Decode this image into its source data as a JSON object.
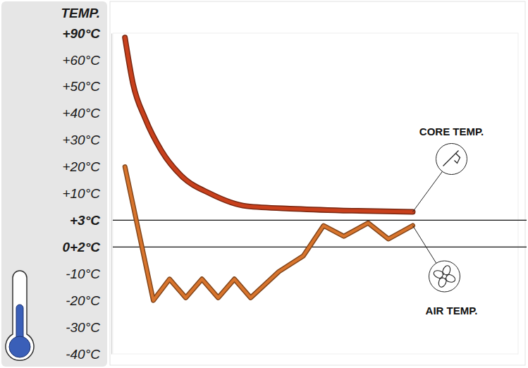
{
  "chart_data": {
    "type": "line",
    "y_label": "TEMP.",
    "ylim": [
      -40,
      90
    ],
    "yticks": [
      {
        "value": 90,
        "label": "+90°C"
      },
      {
        "value": 60,
        "label": "+60°C"
      },
      {
        "value": 50,
        "label": "+50°C"
      },
      {
        "value": 40,
        "label": "+40°C"
      },
      {
        "value": 30,
        "label": "+30°C"
      },
      {
        "value": 20,
        "label": "+20°C"
      },
      {
        "value": 10,
        "label": "+10°C"
      },
      {
        "value": 3,
        "label": "+3°C"
      },
      {
        "value": 2,
        "label": "0+2°C"
      },
      {
        "value": -10,
        "label": "-10°C"
      },
      {
        "value": -20,
        "label": "-20°C"
      },
      {
        "value": -30,
        "label": "-30°C"
      },
      {
        "value": -40,
        "label": "-40°C"
      }
    ],
    "xlim": [
      0,
      100
    ],
    "tick_labels": "y",
    "reference_lines": [
      3,
      2
    ],
    "series": [
      {
        "name": "CORE TEMP.",
        "color": "#c8401c",
        "x": [
          3,
          5,
          8,
          12,
          17,
          24,
          33,
          45,
          59,
          74
        ],
        "values": [
          85,
          51,
          38,
          26,
          16.5,
          10,
          6.7,
          6,
          5.5,
          5.2
        ]
      },
      {
        "name": "AIR TEMP.",
        "color": "#d8742c",
        "x": [
          3,
          10,
          14,
          18,
          22,
          26,
          30,
          34,
          41,
          47,
          52,
          57,
          63,
          68,
          74
        ],
        "values": [
          20,
          -20,
          -12,
          -19,
          -12,
          -19,
          -12,
          -19,
          -9,
          -2,
          2.8,
          2.4,
          2.9,
          2.3,
          2.8
        ]
      }
    ]
  }
}
